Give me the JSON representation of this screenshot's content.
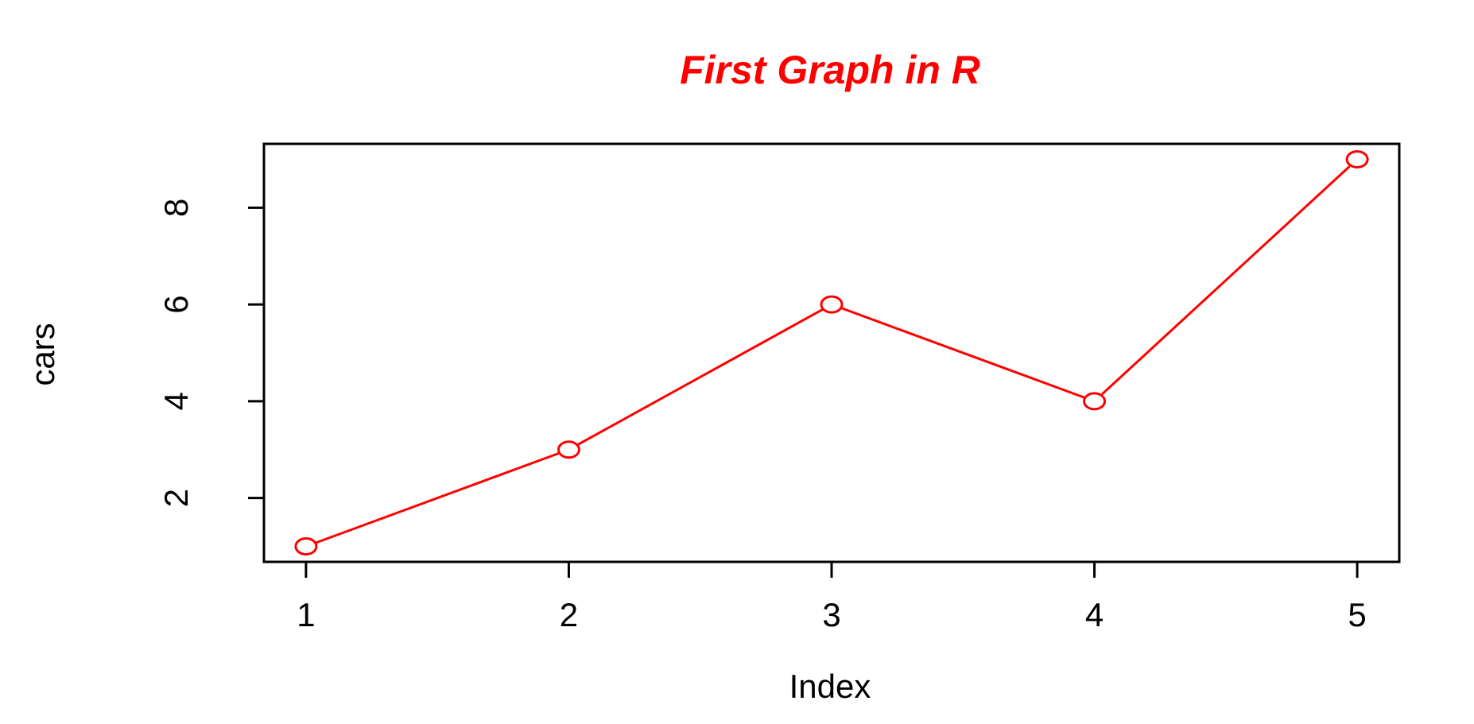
{
  "chart_data": {
    "type": "line",
    "title": "First Graph in R",
    "xlabel": "Index",
    "ylabel": "cars",
    "x": [
      1,
      2,
      3,
      4,
      5
    ],
    "series": [
      {
        "values": [
          1,
          3,
          6,
          4,
          9
        ]
      }
    ],
    "xticks": [
      "1",
      "2",
      "3",
      "4",
      "5"
    ],
    "yticks": [
      "2",
      "4",
      "6",
      "8"
    ],
    "xlim": [
      0.84,
      5.16
    ],
    "ylim": [
      0.68,
      9.32
    ],
    "grid": false,
    "marker": "open-circle",
    "colors": {
      "title": "#ff0000",
      "series": "#ff0000",
      "axis": "#000000"
    }
  }
}
